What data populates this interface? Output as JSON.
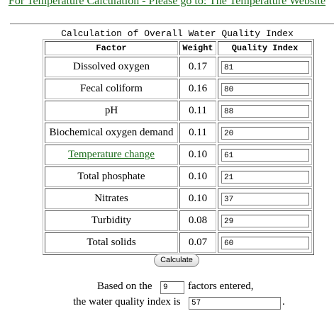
{
  "header": {
    "link_text": "For Temperature Calculation - Please go to: The Temperature Website"
  },
  "table": {
    "caption": "Calculation of Overall Water Quality Index",
    "columns": [
      "Factor",
      "Weight",
      "Quality Index"
    ],
    "rows": [
      {
        "factor": "Dissolved oxygen",
        "weight": "0.17",
        "qi": "81",
        "link": false
      },
      {
        "factor": "Fecal coliform",
        "weight": "0.16",
        "qi": "80",
        "link": false
      },
      {
        "factor": "pH",
        "weight": "0.11",
        "qi": "88",
        "link": false
      },
      {
        "factor": "Biochemical oxygen demand",
        "weight": "0.11",
        "qi": "20",
        "link": false
      },
      {
        "factor": "Temperature change",
        "weight": "0.10",
        "qi": "61",
        "link": true
      },
      {
        "factor": "Total phosphate",
        "weight": "0.10",
        "qi": "21",
        "link": false
      },
      {
        "factor": "Nitrates",
        "weight": "0.10",
        "qi": "37",
        "link": false
      },
      {
        "factor": "Turbidity",
        "weight": "0.08",
        "qi": "29",
        "link": false
      },
      {
        "factor": "Total solids",
        "weight": "0.07",
        "qi": "60",
        "link": false
      }
    ]
  },
  "calculate_label": "Calculate",
  "result": {
    "based_on": "Based on the",
    "factors_count": "9",
    "factors_entered": "factors entered,",
    "wqi_label": "the water quality index is",
    "wqi_value": "57",
    "period": "."
  },
  "colors": {
    "link": "#1a6b1a"
  }
}
